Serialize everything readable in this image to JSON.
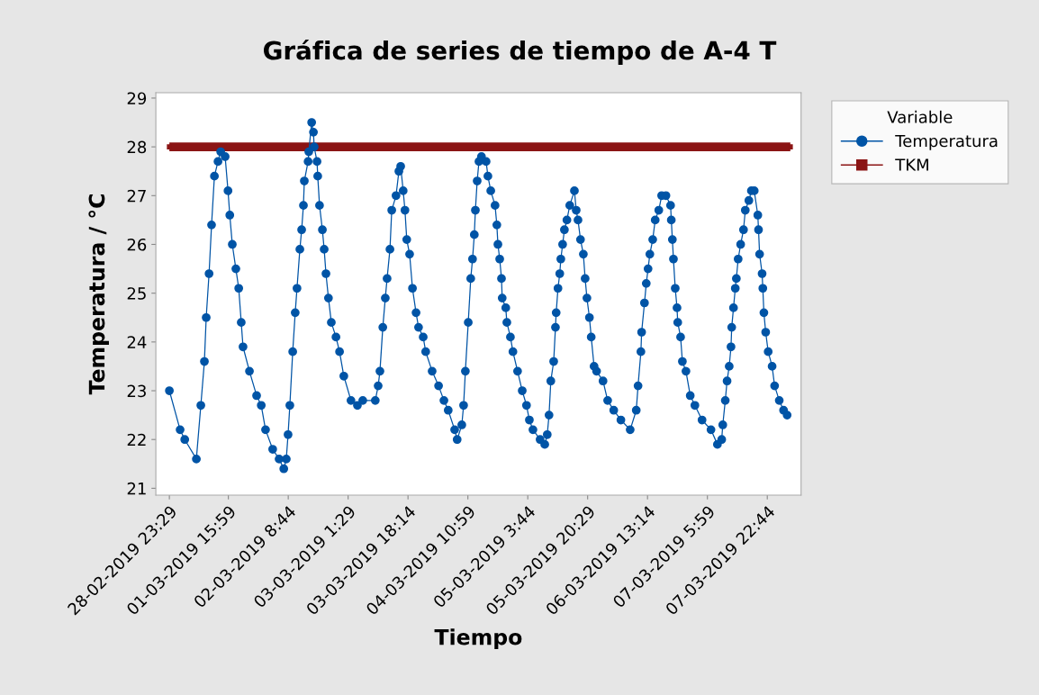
{
  "chart_data": {
    "type": "line",
    "title": "Gráfica de series de tiempo de A-4 T",
    "xlabel": "Tiempo",
    "ylabel": "Temperatura / °C",
    "legend_title": "Variable",
    "legend": "top right",
    "grid": false,
    "x": [
      "2019-02-28T23:29",
      "2019-03-01T02:29",
      "2019-03-01T03:47",
      "2019-03-01T07:02",
      "2019-03-01T08:17",
      "2019-03-01T09:17",
      "2019-03-01T09:47",
      "2019-03-01T10:35",
      "2019-03-01T11:17",
      "2019-03-01T12:05",
      "2019-03-01T13:05",
      "2019-03-01T13:50",
      "2019-03-01T15:05",
      "2019-03-01T15:53",
      "2019-03-01T16:23",
      "2019-03-01T17:05",
      "2019-03-01T18:05",
      "2019-03-01T18:53",
      "2019-03-01T19:35",
      "2019-03-01T20:05",
      "2019-03-01T21:53",
      "2019-03-01T23:53",
      "2019-03-02T01:11",
      "2019-03-02T02:23",
      "2019-03-02T04:23",
      "2019-03-02T06:11",
      "2019-03-02T07:29",
      "2019-03-02T08:11",
      "2019-03-02T08:41",
      "2019-03-02T09:11",
      "2019-03-02T09:59",
      "2019-03-02T10:41",
      "2019-03-02T11:11",
      "2019-03-02T11:59",
      "2019-03-02T12:29",
      "2019-03-02T12:59",
      "2019-03-02T13:14",
      "2019-03-02T14:17",
      "2019-03-02T14:29",
      "2019-03-02T15:17",
      "2019-03-02T15:47",
      "2019-03-02T15:59",
      "2019-03-02T16:47",
      "2019-03-02T16:59",
      "2019-03-02T17:29",
      "2019-03-02T18:17",
      "2019-03-02T18:47",
      "2019-03-02T19:17",
      "2019-03-02T19:59",
      "2019-03-02T20:47",
      "2019-03-02T22:05",
      "2019-03-02T23:05",
      "2019-03-03T00:17",
      "2019-03-03T02:17",
      "2019-03-03T04:05",
      "2019-03-03T05:35",
      "2019-03-03T09:05",
      "2019-03-03T09:53",
      "2019-03-03T10:23",
      "2019-03-03T11:11",
      "2019-03-03T11:53",
      "2019-03-03T12:23",
      "2019-03-03T13:11",
      "2019-03-03T13:41",
      "2019-03-03T14:53",
      "2019-03-03T15:41",
      "2019-03-03T16:11",
      "2019-03-03T16:53",
      "2019-03-03T17:23",
      "2019-03-03T17:53",
      "2019-03-03T18:41",
      "2019-03-03T19:29",
      "2019-03-03T20:29",
      "2019-03-03T21:11",
      "2019-03-03T22:29",
      "2019-03-03T23:11",
      "2019-03-04T00:59",
      "2019-03-04T02:47",
      "2019-03-04T04:17",
      "2019-03-04T05:29",
      "2019-03-04T07:17",
      "2019-03-04T07:59",
      "2019-03-04T09:17",
      "2019-03-04T09:47",
      "2019-03-04T10:17",
      "2019-03-04T11:05",
      "2019-03-04T11:47",
      "2019-03-04T12:17",
      "2019-03-04T12:47",
      "2019-03-04T13:05",
      "2019-03-04T13:35",
      "2019-03-04T14:05",
      "2019-03-04T14:47",
      "2019-03-04T16:05",
      "2019-03-04T16:35",
      "2019-03-04T17:23",
      "2019-03-04T18:35",
      "2019-03-04T19:05",
      "2019-03-04T19:23",
      "2019-03-04T19:53",
      "2019-03-04T20:23",
      "2019-03-04T20:35",
      "2019-03-04T21:35",
      "2019-03-04T21:53",
      "2019-03-04T22:53",
      "2019-03-04T23:35",
      "2019-03-05T00:53",
      "2019-03-05T02:11",
      "2019-03-05T03:23",
      "2019-03-05T04:11",
      "2019-03-05T05:11",
      "2019-03-05T07:11",
      "2019-03-05T08:29",
      "2019-03-05T09:11",
      "2019-03-05T09:41",
      "2019-03-05T10:11",
      "2019-03-05T10:59",
      "2019-03-05T11:29",
      "2019-03-05T11:41",
      "2019-03-05T12:11",
      "2019-03-05T12:41",
      "2019-03-05T12:59",
      "2019-03-05T13:29",
      "2019-03-05T13:59",
      "2019-03-05T14:41",
      "2019-03-05T15:29",
      "2019-03-05T16:47",
      "2019-03-05T17:17",
      "2019-03-05T17:47",
      "2019-03-05T18:29",
      "2019-03-05T19:17",
      "2019-03-05T19:47",
      "2019-03-05T20:17",
      "2019-03-05T20:59",
      "2019-03-05T21:29",
      "2019-03-05T22:17",
      "2019-03-05T22:59",
      "2019-03-06T00:47",
      "2019-03-06T02:05",
      "2019-03-06T03:47",
      "2019-03-06T05:47",
      "2019-03-06T08:23",
      "2019-03-06T10:05",
      "2019-03-06T10:35",
      "2019-03-06T11:23",
      "2019-03-06T11:35",
      "2019-03-06T12:23",
      "2019-03-06T12:53",
      "2019-03-06T13:23",
      "2019-03-06T13:53",
      "2019-03-06T14:41",
      "2019-03-06T15:23",
      "2019-03-06T16:23",
      "2019-03-06T17:11",
      "2019-03-06T18:23",
      "2019-03-06T19:41",
      "2019-03-06T19:53",
      "2019-03-06T20:11",
      "2019-03-06T20:29",
      "2019-03-06T20:59",
      "2019-03-06T21:29",
      "2019-03-06T21:41",
      "2019-03-06T22:29",
      "2019-03-06T22:59",
      "2019-03-06T23:59",
      "2019-03-07T01:11",
      "2019-03-07T02:29",
      "2019-03-07T04:29",
      "2019-03-07T06:59",
      "2019-03-07T08:47",
      "2019-03-07T09:59",
      "2019-03-07T10:17",
      "2019-03-07T10:59",
      "2019-03-07T11:29",
      "2019-03-07T12:05",
      "2019-03-07T12:35",
      "2019-03-07T12:47",
      "2019-03-07T13:17",
      "2019-03-07T13:47",
      "2019-03-07T14:05",
      "2019-03-07T14:35",
      "2019-03-07T15:17",
      "2019-03-07T16:05",
      "2019-03-07T16:35",
      "2019-03-07T17:35",
      "2019-03-07T18:17",
      "2019-03-07T19:05",
      "2019-03-07T20:05",
      "2019-03-07T20:17",
      "2019-03-07T20:35",
      "2019-03-07T21:17",
      "2019-03-07T21:29",
      "2019-03-07T21:47",
      "2019-03-07T22:17",
      "2019-03-07T22:59",
      "2019-03-08T00:05",
      "2019-03-08T00:47",
      "2019-03-08T02:05",
      "2019-03-08T03:17",
      "2019-03-08T04:17"
    ],
    "series": [
      {
        "name": "Temperatura",
        "color": "#0054a6",
        "marker": "circle",
        "values": [
          23.0,
          22.2,
          22.0,
          21.6,
          22.7,
          23.6,
          24.5,
          25.4,
          26.4,
          27.4,
          27.7,
          27.9,
          27.8,
          27.1,
          26.6,
          26.0,
          25.5,
          25.1,
          24.4,
          23.9,
          23.4,
          22.9,
          22.7,
          22.2,
          21.8,
          21.6,
          21.4,
          21.6,
          22.1,
          22.7,
          23.8,
          24.6,
          25.1,
          25.9,
          26.3,
          26.8,
          27.3,
          27.7,
          27.9,
          28.5,
          28.3,
          28.0,
          27.7,
          27.4,
          26.8,
          26.3,
          25.9,
          25.4,
          24.9,
          24.4,
          24.1,
          23.8,
          23.3,
          22.8,
          22.7,
          22.8,
          22.8,
          23.1,
          23.4,
          24.3,
          24.9,
          25.3,
          25.9,
          26.7,
          27.0,
          27.5,
          27.6,
          27.1,
          26.7,
          26.1,
          25.8,
          25.1,
          24.6,
          24.3,
          24.1,
          23.8,
          23.4,
          23.1,
          22.8,
          22.6,
          22.2,
          22.0,
          22.3,
          22.7,
          23.4,
          24.4,
          25.3,
          25.7,
          26.2,
          26.7,
          27.3,
          27.7,
          27.8,
          27.7,
          27.4,
          27.1,
          26.8,
          26.4,
          26.0,
          25.7,
          25.3,
          24.9,
          24.7,
          24.4,
          24.1,
          23.8,
          23.4,
          23.0,
          22.7,
          22.4,
          22.2,
          22.0,
          21.9,
          22.1,
          22.5,
          23.2,
          23.6,
          24.3,
          24.6,
          25.1,
          25.4,
          25.7,
          26.0,
          26.3,
          26.5,
          26.8,
          27.1,
          26.7,
          26.5,
          26.1,
          25.8,
          25.3,
          24.9,
          24.5,
          24.1,
          23.5,
          23.4,
          23.2,
          22.8,
          22.6,
          22.4,
          22.2,
          22.6,
          23.1,
          23.8,
          24.2,
          24.8,
          25.2,
          25.5,
          25.8,
          26.1,
          26.5,
          26.7,
          27.0,
          27.0,
          26.8,
          26.5,
          26.1,
          25.7,
          25.1,
          24.7,
          24.4,
          24.1,
          23.6,
          23.4,
          22.9,
          22.7,
          22.4,
          22.2,
          21.9,
          22.0,
          22.3,
          22.8,
          23.2,
          23.5,
          23.9,
          24.3,
          24.7,
          25.1,
          25.3,
          25.7,
          26.0,
          26.3,
          26.7,
          26.9,
          27.1,
          27.1,
          26.6,
          26.3,
          25.8,
          25.4,
          25.1,
          24.6,
          24.2,
          23.8,
          23.5,
          23.1,
          22.8,
          22.6,
          22.5
        ]
      },
      {
        "name": "TKM",
        "color": "#8b1414",
        "marker": "square",
        "x": [
          "2019-02-28T23:29",
          "2019-03-08T05:11"
        ],
        "values": [
          28,
          28
        ]
      }
    ],
    "xlim": [
      "2019-02-28T19:42",
      "2019-03-08T08:11"
    ],
    "xticks": [
      {
        "value": "2019-02-28T23:29",
        "label": "28-02-2019 23:29"
      },
      {
        "value": "2019-03-01T15:59",
        "label": "01-03-2019 15:59"
      },
      {
        "value": "2019-03-02T08:44",
        "label": "02-03-2019 8:44"
      },
      {
        "value": "2019-03-03T01:29",
        "label": "03-03-2019 1:29"
      },
      {
        "value": "2019-03-03T18:14",
        "label": "03-03-2019 18:14"
      },
      {
        "value": "2019-03-04T10:59",
        "label": "04-03-2019 10:59"
      },
      {
        "value": "2019-03-05T03:44",
        "label": "05-03-2019 3:44"
      },
      {
        "value": "2019-03-05T20:29",
        "label": "05-03-2019 20:29"
      },
      {
        "value": "2019-03-06T13:14",
        "label": "06-03-2019 13:14"
      },
      {
        "value": "2019-03-07T05:59",
        "label": "07-03-2019 5:59"
      },
      {
        "value": "2019-03-07T22:44",
        "label": "07-03-2019 22:44"
      }
    ],
    "ylim": [
      20.86,
      29.11
    ],
    "yticks": [
      21,
      22,
      23,
      24,
      25,
      26,
      27,
      28,
      29
    ]
  }
}
